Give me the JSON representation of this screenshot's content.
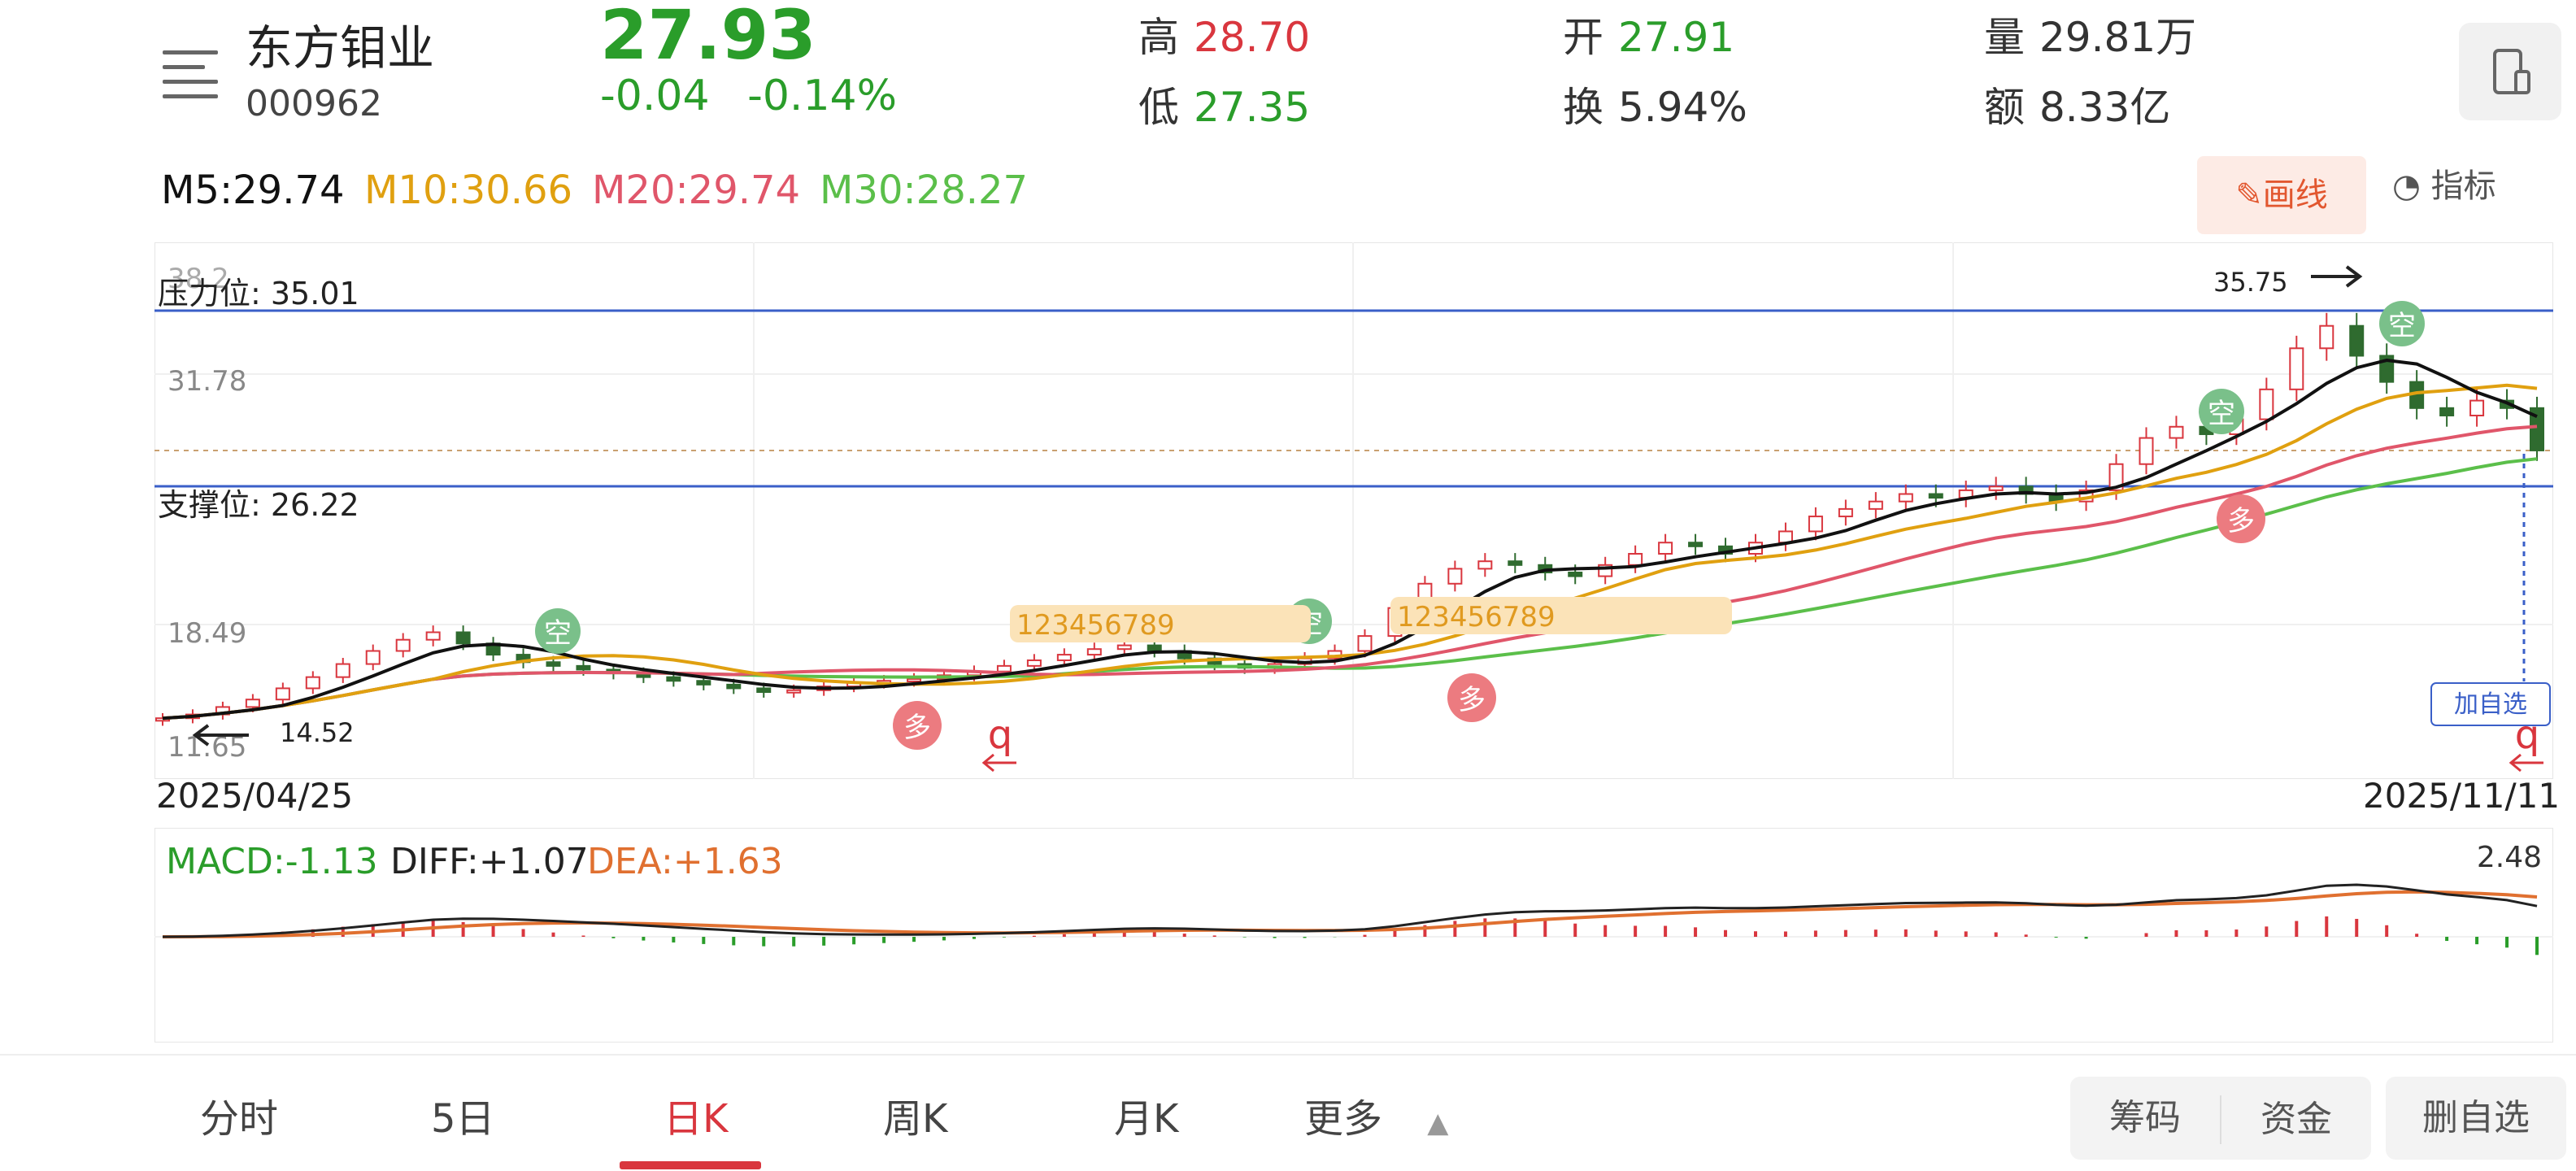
{
  "header": {
    "stock_name": "东方钼业",
    "stock_code": "000962",
    "price": "27.93",
    "change": "-0.04",
    "change_pct": "-0.14%",
    "stats": [
      {
        "label": "高",
        "value": "28.70",
        "color": "#d9363e"
      },
      {
        "label": "低",
        "value": "27.35",
        "color": "#2a9d2a"
      },
      {
        "label": "开",
        "value": "27.91",
        "color": "#2a9d2a"
      },
      {
        "label": "换",
        "value": "5.94%",
        "color": "#333333"
      },
      {
        "label": "量",
        "value": "29.81万",
        "color": "#333333"
      },
      {
        "label": "额",
        "value": "8.33亿",
        "color": "#333333"
      }
    ]
  },
  "ma": {
    "m5": "M5:29.74",
    "m10": "M10:30.66",
    "m20": "M20:29.74",
    "m30": "M30:28.27",
    "colors": {
      "m5": "#111111",
      "m10": "#e0a010",
      "m20": "#e0566a",
      "m30": "#5bbf4a"
    }
  },
  "toolbar": {
    "draw_label": "画线",
    "indicator_label": "指标"
  },
  "chart_data": [
    {
      "type": "candlestick",
      "title": "",
      "y_labels": [
        "38.2",
        "31.78",
        "18.49",
        "11.65"
      ],
      "resistance": {
        "label": "压力位: 35.01",
        "value": 35.01
      },
      "support": {
        "label": "支撑位: 26.22",
        "value": 26.22
      },
      "high_marker": "35.75",
      "low_marker": "14.52",
      "start_date": "2025/04/25",
      "end_date": "2025/11/11",
      "signals": {
        "empty": "空",
        "long": "多",
        "q": "q",
        "count9_a": "123456789",
        "count9_b": "123456789"
      },
      "add_watch_label": "加自选",
      "approx_close": [
        13.6,
        13.8,
        14.2,
        14.6,
        15.2,
        15.8,
        16.5,
        17.2,
        17.8,
        18.2,
        17.6,
        17.0,
        16.6,
        16.4,
        16.2,
        16.0,
        15.8,
        15.6,
        15.4,
        15.2,
        15.0,
        15.1,
        15.3,
        15.5,
        15.6,
        15.7,
        15.9,
        16.1,
        16.4,
        16.7,
        17.0,
        17.3,
        17.5,
        17.2,
        16.8,
        16.5,
        16.3,
        16.5,
        16.8,
        17.2,
        18.0,
        19.5,
        20.8,
        21.6,
        22.0,
        21.8,
        21.4,
        21.2,
        21.8,
        22.4,
        23.0,
        22.8,
        22.4,
        23.0,
        23.6,
        24.4,
        24.8,
        25.2,
        25.6,
        25.4,
        25.8,
        26.0,
        25.6,
        25.2,
        25.8,
        27.2,
        28.6,
        29.2,
        28.8,
        29.6,
        31.2,
        33.4,
        34.6,
        33.0,
        31.6,
        30.2,
        29.8,
        30.6,
        30.2,
        27.93
      ]
    },
    {
      "type": "macd",
      "title": "",
      "macd_label": "MACD:-1.13",
      "diff_label": "DIFF:+1.07",
      "dea_label": "DEA:+1.63",
      "max_label": "2.48"
    }
  ],
  "bottom_tabs": [
    {
      "label": "分时",
      "active": false
    },
    {
      "label": "5日",
      "active": false
    },
    {
      "label": "日K",
      "active": true
    },
    {
      "label": "周K",
      "active": false
    },
    {
      "label": "月K",
      "active": false
    },
    {
      "label": "更多",
      "active": false
    }
  ],
  "bottom_buttons": {
    "chips": "筹码",
    "funds": "资金",
    "remove_watch": "删自选"
  }
}
